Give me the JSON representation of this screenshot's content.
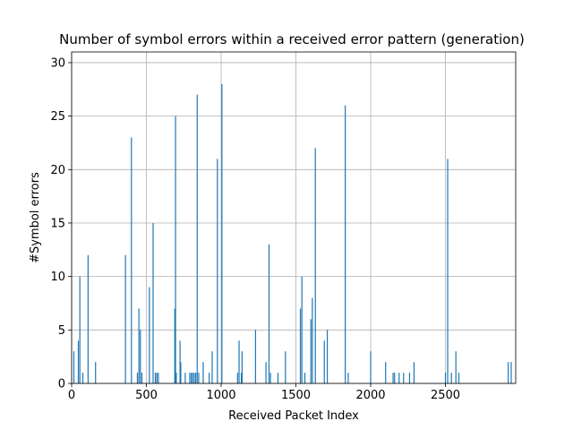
{
  "chart_data": {
    "type": "bar",
    "title": "Number of symbol errors within a received error pattern (generation)",
    "xlabel": "Received Packet Index",
    "ylabel": "#Symbol errors",
    "xlim": [
      0,
      2970
    ],
    "ylim": [
      0,
      31
    ],
    "xticks": [
      0,
      500,
      1000,
      1500,
      2000,
      2500
    ],
    "yticks": [
      0,
      5,
      10,
      15,
      20,
      25,
      30
    ],
    "grid": true,
    "bar_color": "#1f77b4",
    "x": [
      15,
      45,
      55,
      75,
      110,
      160,
      360,
      400,
      440,
      450,
      460,
      470,
      520,
      545,
      560,
      570,
      580,
      690,
      695,
      700,
      725,
      730,
      760,
      790,
      800,
      810,
      820,
      830,
      840,
      850,
      880,
      920,
      940,
      975,
      1005,
      1110,
      1120,
      1135,
      1140,
      1230,
      1300,
      1320,
      1330,
      1380,
      1430,
      1530,
      1540,
      1560,
      1600,
      1610,
      1630,
      1690,
      1710,
      1830,
      1850,
      2000,
      2100,
      2150,
      2160,
      2190,
      2220,
      2260,
      2290,
      2500,
      2515,
      2540,
      2570,
      2590,
      2920,
      2940
    ],
    "values": [
      3,
      4,
      10,
      1,
      12,
      2,
      12,
      23,
      1,
      7,
      5,
      1,
      9,
      15,
      1,
      1,
      1,
      7,
      25,
      1,
      4,
      2,
      1,
      1,
      1,
      1,
      1,
      1,
      27,
      1,
      2,
      1,
      3,
      21,
      28,
      1,
      4,
      1,
      3,
      5,
      2,
      13,
      1,
      1,
      3,
      7,
      10,
      1,
      6,
      8,
      22,
      4,
      5,
      26,
      1,
      3,
      2,
      1,
      1,
      1,
      1,
      1,
      2,
      1,
      21,
      1,
      3,
      1,
      2,
      2
    ]
  }
}
